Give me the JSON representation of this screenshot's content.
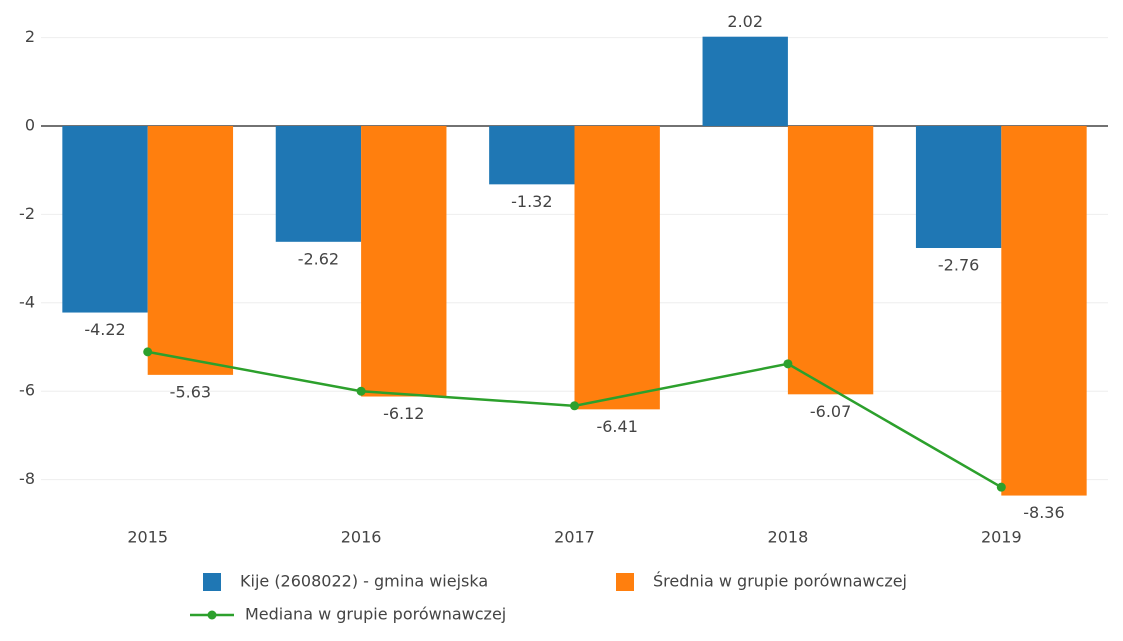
{
  "chart_data": {
    "type": "bar",
    "categories": [
      "2015",
      "2016",
      "2017",
      "2018",
      "2019"
    ],
    "series": [
      {
        "name": "Kije (2608022) - gmina wiejska",
        "color": "#1f77b4",
        "values": [
          -4.22,
          -2.62,
          -1.32,
          2.02,
          -2.76
        ]
      },
      {
        "name": "Średnia w grupie porównawczej",
        "color": "#ff7f0e",
        "values": [
          -5.63,
          -6.12,
          -6.41,
          -6.07,
          -8.36
        ]
      },
      {
        "name": "Mediana w grupie porównawczej",
        "color": "#2ca02c",
        "type": "line",
        "values": [
          -5.11,
          -6.0,
          -6.33,
          -5.38,
          -8.17
        ]
      }
    ],
    "ylim": [
      -8.8,
      2.85
    ],
    "yticks": [
      2,
      0,
      -2,
      -4,
      -6,
      -8
    ],
    "grid": true
  }
}
